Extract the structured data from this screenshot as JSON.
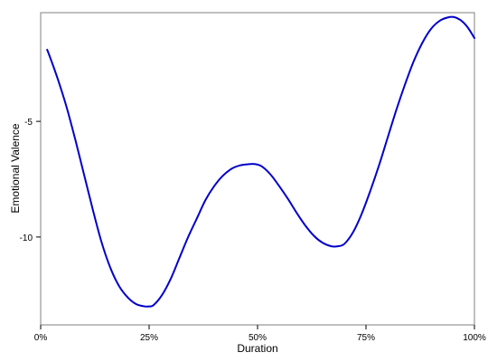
{
  "chart_data": {
    "type": "line",
    "xlabel": "Duration",
    "ylabel": "Emotional Valence",
    "xlim": [
      0,
      100
    ],
    "ylim": [
      -13.8,
      -0.3
    ],
    "x_ticks": [
      {
        "value": 0,
        "label": "0%"
      },
      {
        "value": 25,
        "label": "25%"
      },
      {
        "value": 50,
        "label": "50%"
      },
      {
        "value": 75,
        "label": "75%"
      },
      {
        "value": 100,
        "label": "100%"
      }
    ],
    "y_ticks": [
      {
        "value": -5,
        "label": "-5"
      },
      {
        "value": -10,
        "label": "-10"
      }
    ],
    "grid": false,
    "legend": "none",
    "line_color": "#0000cc",
    "series": [
      {
        "x": [
          1.5,
          2.5,
          4,
          6,
          8,
          10,
          12,
          14,
          16,
          18,
          20,
          22,
          24,
          25,
          26,
          28,
          30,
          32,
          34,
          36,
          38,
          40,
          42,
          44,
          46,
          48,
          49.5,
          51,
          53,
          55,
          57,
          59,
          61,
          63,
          65,
          67,
          68.5,
          70,
          72,
          74,
          76,
          78,
          80,
          82,
          84,
          86,
          88,
          90,
          92,
          94,
          95.5,
          97,
          98.5,
          100
        ],
        "y": [
          -1.9,
          -2.4,
          -3.2,
          -4.4,
          -5.8,
          -7.3,
          -8.8,
          -10.2,
          -11.3,
          -12.1,
          -12.6,
          -12.9,
          -13.0,
          -13.0,
          -12.95,
          -12.5,
          -11.8,
          -10.9,
          -10.0,
          -9.2,
          -8.4,
          -7.8,
          -7.35,
          -7.05,
          -6.9,
          -6.85,
          -6.85,
          -6.95,
          -7.3,
          -7.8,
          -8.35,
          -8.95,
          -9.5,
          -9.95,
          -10.25,
          -10.4,
          -10.4,
          -10.3,
          -9.8,
          -9.0,
          -8.0,
          -6.9,
          -5.7,
          -4.5,
          -3.4,
          -2.4,
          -1.6,
          -1.0,
          -0.65,
          -0.5,
          -0.5,
          -0.65,
          -0.95,
          -1.4
        ]
      }
    ]
  }
}
